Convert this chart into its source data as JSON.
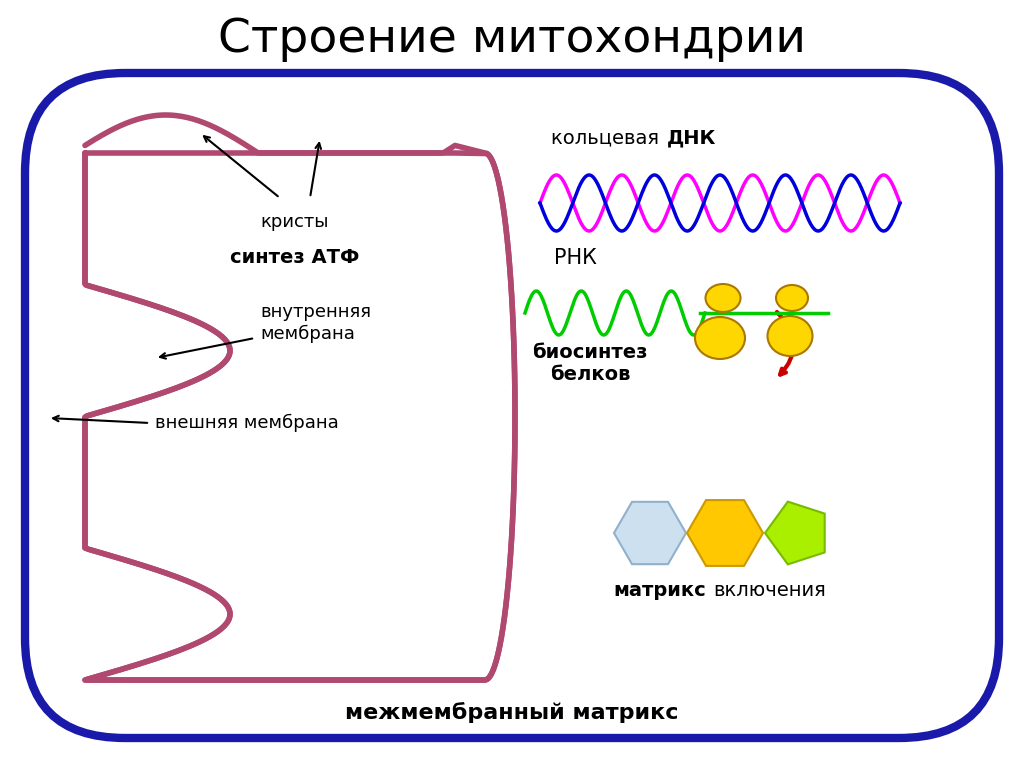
{
  "title": "Строение митохондрии",
  "title_fontsize": 34,
  "bg_color": "#ffffff",
  "outer_membrane_color": "#1a1aaa",
  "inner_membrane_color": "#b04870",
  "dna_color1": "#ff00ff",
  "dna_color2": "#0000dd",
  "rna_color": "#00cc00",
  "ribosome_color": "#ffd700",
  "protein_color": "#cc0000",
  "label_cristae": "кристы",
  "label_atf": "синтез АТФ",
  "label_inner": "внутренняя\nмембрана",
  "label_outer": "внешняя мембрана",
  "label_dna_pre": "кольцевая ",
  "label_dna_bold": "ДНК",
  "label_rna": "РНК",
  "label_biosynthesis": "биосинтез\nбелков",
  "label_matrix": "матрикс",
  "label_inclusions": "включения",
  "label_intermembrane": "межмембранный матрикс"
}
